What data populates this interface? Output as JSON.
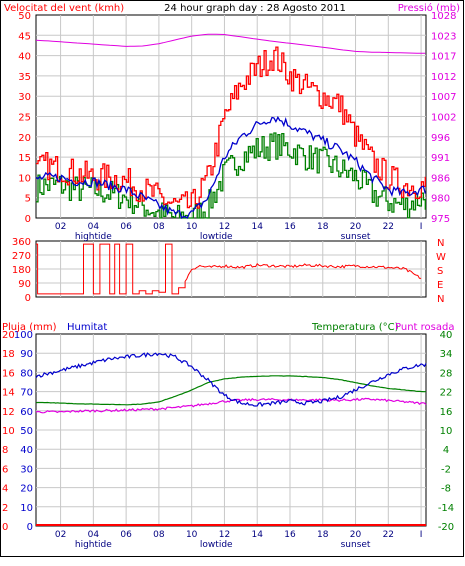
{
  "colors": {
    "wind": "#ff0000",
    "gust": "#ff0000",
    "wind_avg": "#008000",
    "humidity": "#0000cc",
    "temperature": "#008000",
    "dewpoint": "#e000e0",
    "pressure": "#e000e0",
    "rain": "#ff0000",
    "grid": "#c8c8c8"
  },
  "chart_data": [
    {
      "type": "line",
      "title": "24 hour graph day : 28 Agosto 2011",
      "left_axis_label": "Velocitat del vent (kmh)",
      "right_axis_label": "Pressió (mb)",
      "y_left": {
        "min": 0,
        "max": 50,
        "ticks": [
          "0",
          "5",
          "10",
          "15",
          "20",
          "25",
          "30",
          "35",
          "40",
          "45",
          "50"
        ]
      },
      "y_right": {
        "ticks": [
          "975",
          "980",
          "986",
          "991",
          "996",
          "1002",
          "1007",
          "1012",
          "1017",
          "1023",
          "1028"
        ]
      },
      "x_ticks": [
        "02",
        "04",
        "06",
        "08",
        "10",
        "12",
        "14",
        "16",
        "18",
        "20",
        "22",
        "I"
      ],
      "x_events": [
        {
          "label": "hightide",
          "x": 4
        },
        {
          "label": "lowtide",
          "x": 11.5
        },
        {
          "label": "sunset",
          "x": 20
        }
      ],
      "series": [
        {
          "role": "gust",
          "color_key": "gust",
          "x": [
            0,
            1,
            2,
            3,
            4,
            5,
            6,
            7,
            8,
            9,
            10,
            11,
            12,
            13,
            14,
            15,
            16,
            17,
            18,
            19,
            20,
            21,
            22,
            23,
            24
          ],
          "values": [
            10,
            13,
            12,
            11,
            10,
            10,
            9,
            7,
            5,
            3,
            3,
            10,
            25,
            33,
            37,
            40,
            35,
            32,
            30,
            28,
            20,
            14,
            10,
            8,
            8
          ]
        },
        {
          "role": "wind",
          "color_key": "humidity",
          "x": [
            0,
            1,
            2,
            3,
            4,
            5,
            6,
            7,
            8,
            9,
            10,
            11,
            12,
            13,
            14,
            15,
            16,
            17,
            18,
            19,
            20,
            21,
            22,
            23,
            24
          ],
          "values": [
            9,
            10,
            10,
            9,
            9,
            8,
            7,
            5,
            3,
            1,
            1,
            5,
            15,
            20,
            23,
            25,
            23,
            21,
            19,
            17,
            14,
            10,
            7,
            6,
            7
          ]
        },
        {
          "role": "wind_min",
          "color_key": "wind_avg",
          "x": [
            0,
            1,
            2,
            3,
            4,
            5,
            6,
            7,
            8,
            9,
            10,
            11,
            12,
            13,
            14,
            15,
            16,
            17,
            18,
            19,
            20,
            21,
            22,
            23,
            24
          ],
          "values": [
            7,
            8,
            8,
            7,
            7,
            6,
            5,
            3,
            1,
            0,
            0,
            3,
            11,
            15,
            17,
            18,
            17,
            15,
            14,
            12,
            10,
            6,
            4,
            3,
            5
          ]
        },
        {
          "role": "pressure",
          "color_key": "pressure",
          "x": [
            0,
            1,
            2,
            3,
            4,
            5,
            6,
            7,
            8,
            9,
            10,
            11,
            12,
            13,
            14,
            15,
            16,
            17,
            18,
            19,
            20,
            21,
            22,
            23,
            24
          ],
          "values": [
            1021.5,
            1021.3,
            1021.0,
            1020.7,
            1020.4,
            1020.1,
            1019.8,
            1019.9,
            1020.5,
            1021.5,
            1022.5,
            1023.0,
            1022.9,
            1022.3,
            1021.7,
            1021.1,
            1020.6,
            1020.1,
            1019.6,
            1019.0,
            1018.5,
            1018.3,
            1018.2,
            1018.1,
            1018.0
          ]
        }
      ]
    },
    {
      "type": "line",
      "title": "",
      "right_axis_letters": [
        "N",
        "W",
        "S",
        "E",
        "N"
      ],
      "y_left": {
        "min": 0,
        "max": 360,
        "ticks": [
          "0",
          "90",
          "180",
          "270",
          "360"
        ]
      },
      "series": [
        {
          "role": "wind_direction",
          "color_key": "wind",
          "x": [
            0,
            0.3,
            0.6,
            1,
            1.5,
            2,
            2.5,
            3,
            3.4,
            3.7,
            4,
            4.4,
            5,
            5.3,
            5.6,
            6,
            6.4,
            6.8,
            7.2,
            7.6,
            8,
            8.4,
            8.8,
            9.2,
            9.6,
            10,
            10.5,
            11,
            12,
            13,
            14,
            15,
            16,
            17,
            18,
            19,
            20,
            21,
            22,
            23,
            23.5,
            24
          ],
          "values": [
            340,
            340,
            20,
            20,
            20,
            20,
            20,
            20,
            340,
            340,
            20,
            340,
            20,
            340,
            20,
            340,
            20,
            40,
            20,
            40,
            30,
            340,
            20,
            60,
            100,
            180,
            200,
            190,
            200,
            190,
            205,
            200,
            195,
            205,
            200,
            195,
            200,
            195,
            190,
            180,
            150,
            120
          ]
        }
      ]
    },
    {
      "type": "line",
      "title": "",
      "labels": {
        "rain": "Pluja (mm)",
        "humidity": "Humitat",
        "temperature": "Temperatura (°C)",
        "dewpoint": "Punt rosada"
      },
      "y_rain_ticks": [
        "0",
        "2",
        "4",
        "6",
        "8",
        "10",
        "12",
        "14",
        "16",
        "18",
        "20"
      ],
      "y_humidity_ticks": [
        "0",
        "10",
        "20",
        "30",
        "40",
        "50",
        "60",
        "70",
        "80",
        "90",
        "100"
      ],
      "y_temp_right": {
        "min": -20,
        "max": 40,
        "ticks": [
          "-20",
          "-14",
          "-8",
          "-2",
          "4",
          "10",
          "16",
          "22",
          "28",
          "34",
          "40"
        ]
      },
      "series": [
        {
          "role": "humidity",
          "color_key": "humidity",
          "x": [
            0,
            1,
            2,
            3,
            4,
            5,
            6,
            7,
            8,
            9,
            10,
            11,
            12,
            13,
            14,
            15,
            16,
            17,
            18,
            19,
            20,
            21,
            22,
            23,
            24
          ],
          "values": [
            77,
            79,
            81,
            83,
            85,
            87,
            88,
            89,
            90,
            88,
            83,
            76,
            68,
            64,
            63,
            64,
            65,
            64,
            65,
            67,
            71,
            75,
            79,
            82,
            84
          ]
        },
        {
          "role": "temperature",
          "color_key": "temperature",
          "x": [
            0,
            1,
            2,
            3,
            4,
            5,
            6,
            7,
            8,
            9,
            10,
            11,
            12,
            13,
            14,
            15,
            16,
            17,
            18,
            19,
            20,
            21,
            22,
            23,
            24
          ],
          "values": [
            18.5,
            18.6,
            18.4,
            18.2,
            18.1,
            18.0,
            17.9,
            18.1,
            18.8,
            20.5,
            22.5,
            24.8,
            26.0,
            26.5,
            26.8,
            26.9,
            26.9,
            26.7,
            26.4,
            25.8,
            24.8,
            23.8,
            23.0,
            22.5,
            22.0
          ]
        },
        {
          "role": "dewpoint",
          "color_key": "dewpoint",
          "x": [
            0,
            1,
            2,
            3,
            4,
            5,
            6,
            7,
            8,
            9,
            10,
            11,
            12,
            13,
            14,
            15,
            16,
            17,
            18,
            19,
            20,
            21,
            22,
            23,
            24
          ],
          "values": [
            15.5,
            15.7,
            15.6,
            15.9,
            16.0,
            16.1,
            16.2,
            16.4,
            16.6,
            17.0,
            17.5,
            18.2,
            19.0,
            19.3,
            19.5,
            19.5,
            19.4,
            19.4,
            19.4,
            19.3,
            19.5,
            19.6,
            19.2,
            18.8,
            18.3
          ]
        },
        {
          "role": "rain",
          "color_key": "rain",
          "x": [
            0,
            24
          ],
          "values": [
            0,
            0
          ]
        }
      ]
    }
  ]
}
